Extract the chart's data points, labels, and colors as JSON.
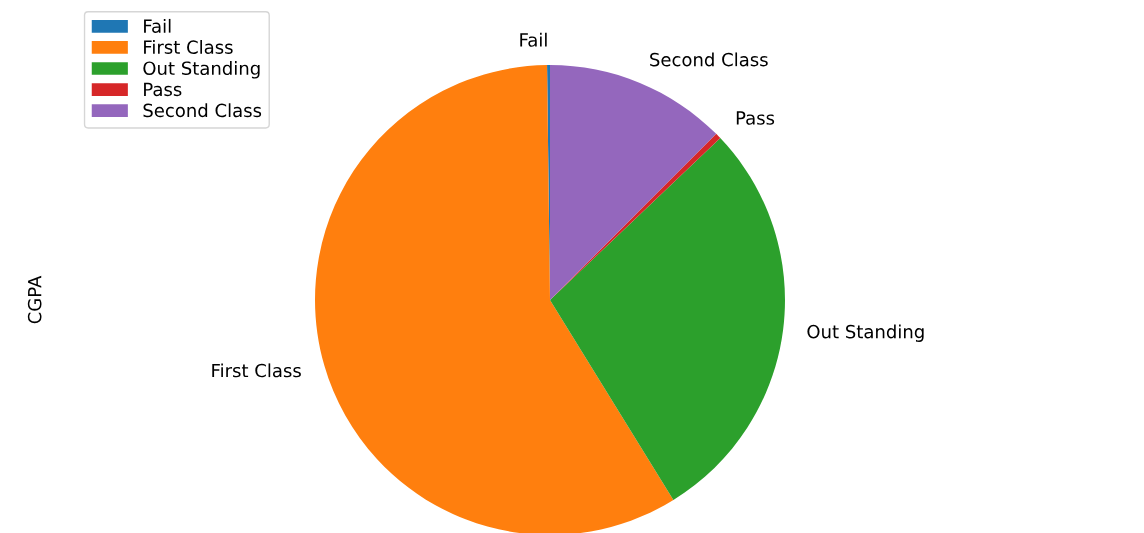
{
  "chart_data": {
    "type": "pie",
    "ylabel": "CGPA",
    "legend": "top left",
    "categories": [
      "Fail",
      "First Class",
      "Out Standing",
      "Pass",
      "Second Class"
    ],
    "values": [
      0.2,
      58.6,
      28.3,
      0.4,
      12.5
    ],
    "colors": [
      "#1f77b4",
      "#ff7f0e",
      "#2ca02c",
      "#d62728",
      "#9467bd"
    ]
  }
}
